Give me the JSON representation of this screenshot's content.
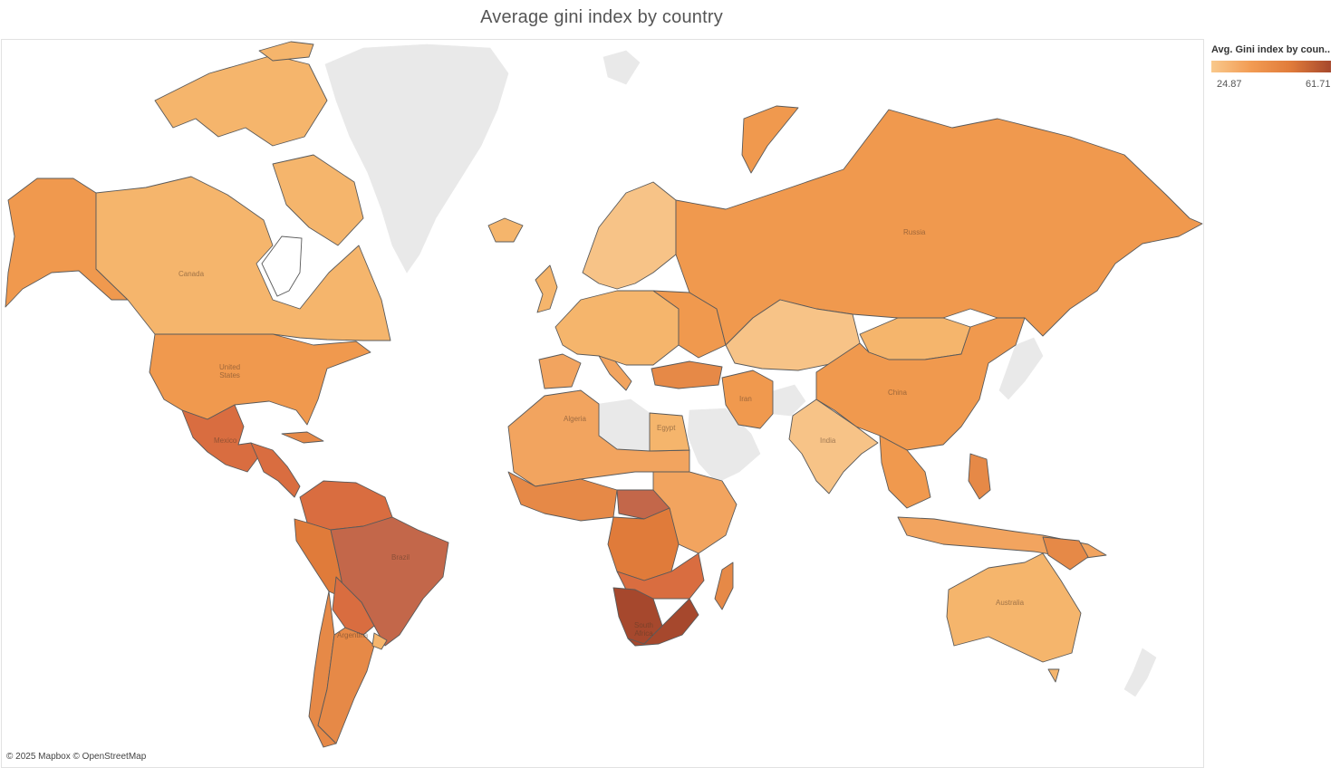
{
  "title": "Average gini index by country",
  "legend": {
    "title": "Avg. Gini index by coun..",
    "min_label": "24.87",
    "max_label": "61.71",
    "color_low": "#f9c98c",
    "color_high": "#a6482d"
  },
  "attribution": "© 2025 Mapbox © OpenStreetMap",
  "map_labels": {
    "canada": "Canada",
    "united_states": "United\nStates",
    "mexico": "Mexico",
    "brazil": "Brazil",
    "argentina": "Argentina",
    "algeria": "Algeria",
    "egypt": "Egypt",
    "russia": "Russia",
    "china": "China",
    "india": "India",
    "iran": "Iran",
    "australia": "Australia",
    "south_africa": "South\nAfrica"
  },
  "colors": {
    "no_data": "#e9e9e9",
    "border": "#5a5a5a"
  }
}
